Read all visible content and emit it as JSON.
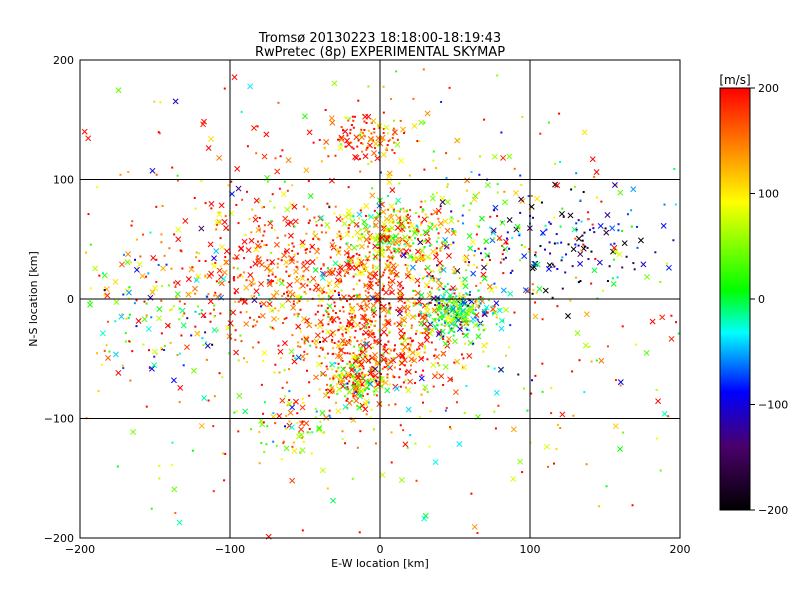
{
  "chart_data": {
    "type": "scatter",
    "title": "Tromsø 20130223 18:18:00-18:19:43",
    "subtitle": "RwPretec (8p) EXPERIMENTAL SKYMAP",
    "xlabel": "E-W location [km]",
    "ylabel": "N-S location [km]",
    "xlim": [
      -200,
      200
    ],
    "ylim": [
      -200,
      200
    ],
    "xticks": [
      -200,
      -100,
      0,
      100,
      200
    ],
    "yticks": [
      -200,
      -100,
      0,
      100,
      200
    ],
    "grid": true,
    "colorbar": {
      "label": "[m/s]",
      "min": -200,
      "max": 200,
      "ticks": [
        200,
        100,
        0,
        -100,
        -200
      ],
      "colormap": [
        "#000000",
        "#4a006a",
        "#0000ff",
        "#00ffff",
        "#00ff00",
        "#ffff00",
        "#ff0000"
      ]
    },
    "marker_types": [
      "cross",
      "dot"
    ],
    "clusters": [
      {
        "x": -10,
        "y": 135,
        "sx": 15,
        "sy": 10,
        "n": 110,
        "v": 165,
        "vs": 60
      },
      {
        "x": 10,
        "y": 50,
        "sx": 18,
        "sy": 15,
        "n": 260,
        "v": 95,
        "vs": 80
      },
      {
        "x": -8,
        "y": 15,
        "sx": 35,
        "sy": 30,
        "n": 420,
        "v": 175,
        "vs": 60
      },
      {
        "x": -85,
        "y": 25,
        "sx": 35,
        "sy": 30,
        "n": 230,
        "v": 180,
        "vs": 50
      },
      {
        "x": 50,
        "y": -10,
        "sx": 12,
        "sy": 10,
        "n": 260,
        "v": 10,
        "vs": 75
      },
      {
        "x": -5,
        "y": -45,
        "sx": 25,
        "sy": 22,
        "n": 420,
        "v": 165,
        "vs": 70
      },
      {
        "x": -15,
        "y": -70,
        "sx": 10,
        "sy": 8,
        "n": 120,
        "v": 80,
        "vs": 80
      },
      {
        "x": 140,
        "y": 40,
        "sx": 25,
        "sy": 20,
        "n": 90,
        "v": -150,
        "vs": 70
      },
      {
        "x": 80,
        "y": 50,
        "sx": 30,
        "sy": 25,
        "n": 120,
        "v": -30,
        "vs": 110
      },
      {
        "x": -140,
        "y": -10,
        "sx": 30,
        "sy": 25,
        "n": 120,
        "v": 30,
        "vs": 110
      },
      {
        "x": -65,
        "y": -110,
        "sx": 15,
        "sy": 12,
        "n": 60,
        "v": 70,
        "vs": 80
      },
      {
        "x": 0,
        "y": 0,
        "sx": 110,
        "sy": 95,
        "n": 700,
        "v": 110,
        "vs": 110
      }
    ]
  }
}
